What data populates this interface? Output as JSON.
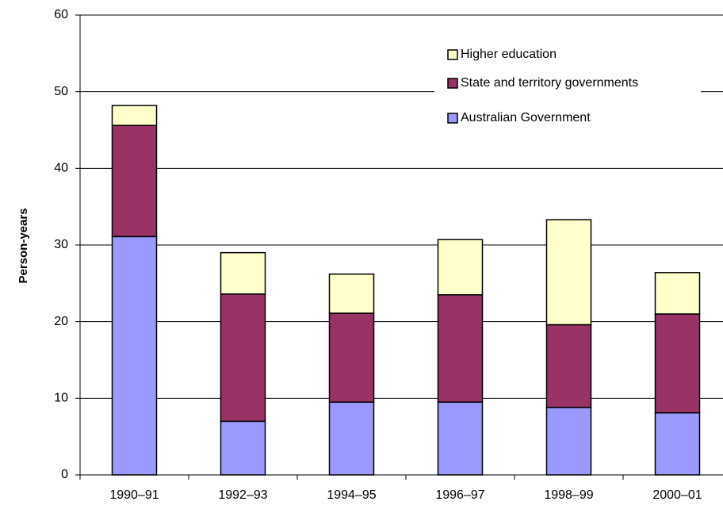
{
  "chart_data": {
    "type": "stacked_bar",
    "ylabel": "Person-years",
    "categories": [
      "1990–91",
      "1992–93",
      "1994–95",
      "1996–97",
      "1998–99",
      "2000–01"
    ],
    "series": [
      {
        "name": "Australian Government",
        "color": "#9999ff",
        "values": [
          31.1,
          7.0,
          9.5,
          9.5,
          8.8,
          8.1
        ]
      },
      {
        "name": "State and territory governments",
        "color": "#993366",
        "values": [
          14.5,
          16.6,
          11.6,
          14.0,
          10.8,
          12.9
        ]
      },
      {
        "name": "Higher education",
        "color": "#ffffcc",
        "values": [
          2.6,
          5.4,
          5.1,
          7.2,
          13.7,
          5.4
        ]
      }
    ],
    "ylim": [
      0,
      60
    ],
    "yticks": [
      0,
      10,
      20,
      30,
      40,
      50,
      60
    ],
    "grid": true
  }
}
